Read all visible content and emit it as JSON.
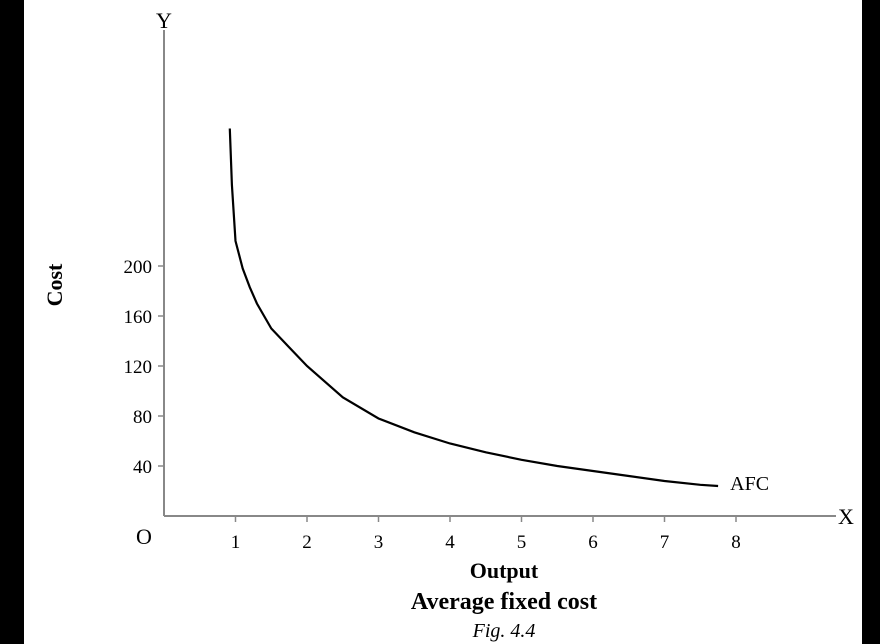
{
  "chart_data": {
    "type": "line",
    "xlabel": "Output",
    "ylabel": "Cost",
    "x_axis_letter": "X",
    "y_axis_letter": "Y",
    "origin_label": "O",
    "caption": "Average fixed cost",
    "figure_label": "Fig. 4.4",
    "x_ticks": [
      1,
      2,
      3,
      4,
      5,
      6,
      7,
      8
    ],
    "y_ticks": [
      40,
      80,
      120,
      160,
      200
    ],
    "xlim": [
      0,
      8.7
    ],
    "ylim": [
      0,
      400
    ],
    "grid": false,
    "series": [
      {
        "name": "AFC",
        "x": [
          0.92,
          0.95,
          1.0,
          1.1,
          1.2,
          1.3,
          1.5,
          1.75,
          2.0,
          2.5,
          3.0,
          3.5,
          4.0,
          4.5,
          5.0,
          5.5,
          6.0,
          6.5,
          7.0,
          7.5,
          7.75
        ],
        "y": [
          310,
          265,
          220,
          198,
          183,
          170,
          150,
          135,
          120,
          95,
          78,
          67,
          58,
          51,
          45,
          40,
          36,
          32,
          28,
          25,
          24
        ]
      }
    ]
  }
}
